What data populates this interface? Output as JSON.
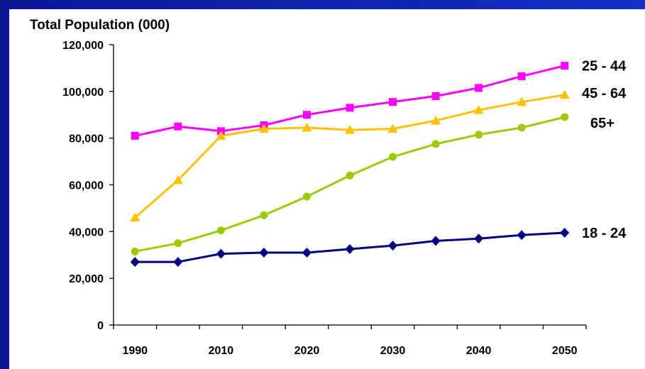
{
  "chart_data": {
    "type": "line",
    "title": "Total Population (000)",
    "x_tick_labels": [
      "1990",
      "2010",
      "2020",
      "2030",
      "2040",
      "2050"
    ],
    "y_tick_labels": [
      "0",
      "20,000",
      "40,000",
      "60,000",
      "80,000",
      "100,000",
      "120,000"
    ],
    "ylim": [
      0,
      120000
    ],
    "x": [
      1990,
      1995,
      2005,
      2010,
      2015,
      2020,
      2025,
      2030,
      2035,
      2040,
      2045
    ],
    "grid": false,
    "legend": "series labels at line ends, right",
    "series": [
      {
        "name": "25 - 44",
        "color": "#ff00ff",
        "marker": "square",
        "values": [
          81000,
          85000,
          83000,
          85500,
          90000,
          93000,
          95500,
          98000,
          101500,
          106500,
          111000
        ]
      },
      {
        "name": "45 - 64",
        "color": "#ffc000",
        "marker": "triangle",
        "values": [
          46000,
          62000,
          81000,
          84000,
          84500,
          83500,
          84000,
          87500,
          92000,
          95500,
          98500
        ]
      },
      {
        "name": "65+",
        "color": "#99cc00",
        "marker": "circle",
        "values": [
          31500,
          35000,
          40500,
          47000,
          55000,
          64000,
          72000,
          77500,
          81500,
          84500,
          89000
        ]
      },
      {
        "name": "18 - 24",
        "color": "#000080",
        "marker": "diamond",
        "values": [
          27000,
          27000,
          30500,
          31000,
          31000,
          32500,
          34000,
          36000,
          37000,
          38500,
          39500
        ]
      }
    ]
  }
}
